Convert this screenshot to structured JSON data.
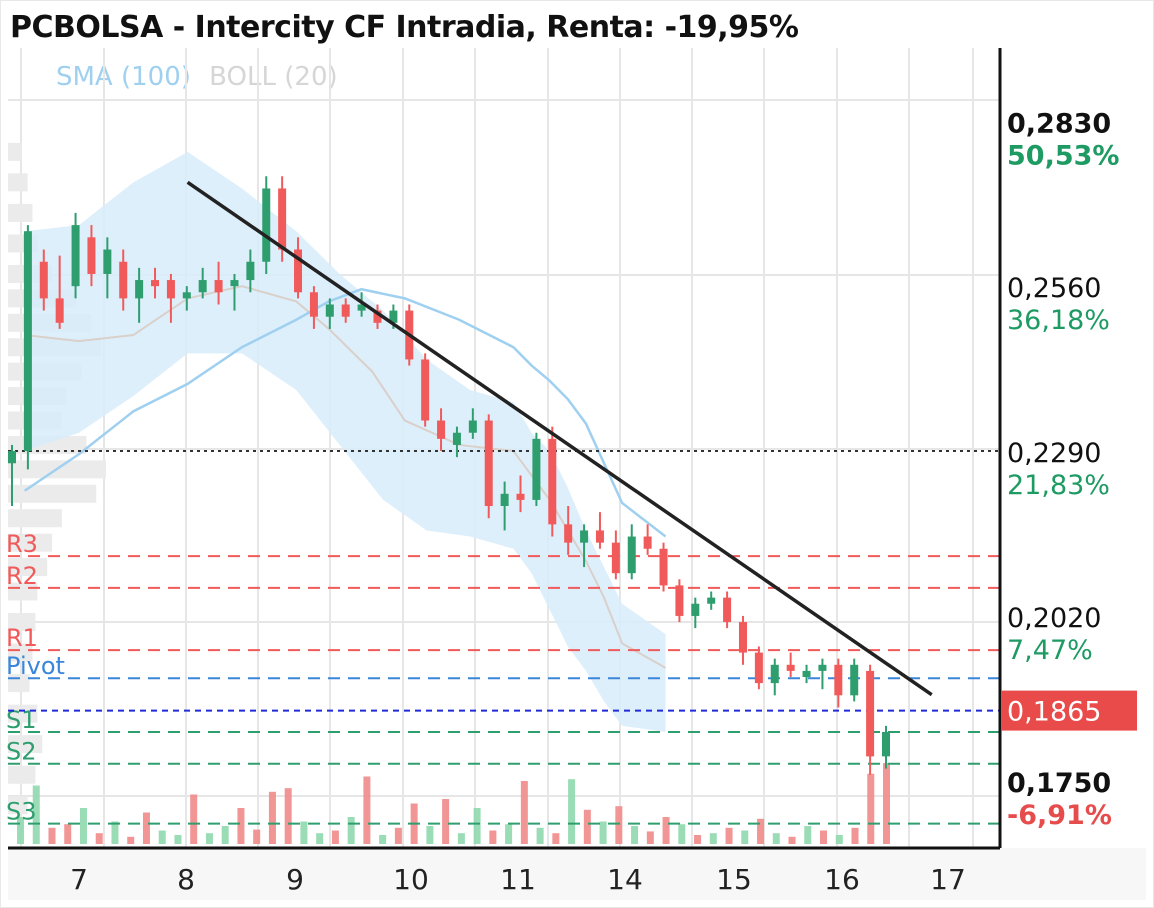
{
  "title": "PCBOLSA - Intercity CF Intradia, Renta: -19,95%",
  "legend": [
    {
      "label": "SMA (100)",
      "color": "#9fd0f0"
    },
    {
      "label": "BOLL (20)",
      "color": "#d6d6d6"
    }
  ],
  "chart_data": {
    "type": "candlestick",
    "ylim": [
      0.164,
      0.295
    ],
    "x_tick_labels": [
      "7",
      "8",
      "9",
      "10",
      "11",
      "14",
      "15",
      "16",
      "17"
    ],
    "y_ticks": [
      {
        "price": "0,2830",
        "pct": "50,53%",
        "value": 0.283,
        "bold": true,
        "pct_color": "#1e9a63"
      },
      {
        "price": "0,2560",
        "pct": "36,18%",
        "value": 0.256,
        "bold": false,
        "pct_color": "#1e9a63"
      },
      {
        "price": "0,2290",
        "pct": "21,83%",
        "value": 0.229,
        "bold": false,
        "pct_color": "#1e9a63"
      },
      {
        "price": "0,2020",
        "pct": "7,47%",
        "value": 0.202,
        "bold": false,
        "pct_color": "#1e9a63"
      },
      {
        "price": "0,1750",
        "pct": "-6,91%",
        "value": 0.175,
        "bold": true,
        "pct_color": "#e74c4c"
      }
    ],
    "current_price": {
      "label": "0,1865",
      "value": 0.1865,
      "color": "#e94b4b"
    },
    "reference_line": {
      "value": 0.229,
      "style": "dotted",
      "color": "#333333"
    },
    "levels": [
      {
        "name": "R3",
        "value": 0.2118,
        "color": "#f05a5a"
      },
      {
        "name": "R2",
        "value": 0.2066,
        "color": "#f05a5a"
      },
      {
        "name": "R1",
        "value": 0.1964,
        "color": "#f05a5a"
      },
      {
        "name": "Pivot",
        "value": 0.1918,
        "color": "#3a86d9"
      },
      {
        "name": "S1",
        "value": 0.183,
        "color": "#2e9e6e"
      },
      {
        "name": "S2",
        "value": 0.1778,
        "color": "#2e9e6e"
      },
      {
        "name": "S3",
        "value": 0.168,
        "color": "#2e9e6e"
      }
    ],
    "trendline": {
      "from": {
        "x": 8.0,
        "y": 0.273
      },
      "to": {
        "x": 16.85,
        "y": 0.1891
      },
      "color": "#222222"
    },
    "sma_100": [
      [
        6.5,
        0.2225
      ],
      [
        7.0,
        0.2285
      ],
      [
        7.5,
        0.2355
      ],
      [
        8.0,
        0.24
      ],
      [
        8.5,
        0.246
      ],
      [
        9.0,
        0.2505
      ],
      [
        9.3,
        0.2535
      ],
      [
        9.6,
        0.2555
      ],
      [
        10.0,
        0.254
      ],
      [
        10.5,
        0.2505
      ],
      [
        11.0,
        0.246
      ],
      [
        11.5,
        0.243
      ],
      [
        12.0,
        0.2405
      ],
      [
        12.5,
        0.2375
      ],
      [
        13.0,
        0.2335
      ],
      [
        13.5,
        0.227
      ],
      [
        14.0,
        0.2205
      ],
      [
        14.4,
        0.215
      ]
    ],
    "boll_mid": [
      [
        6.5,
        0.248
      ],
      [
        7.0,
        0.247
      ],
      [
        7.5,
        0.248
      ],
      [
        8.0,
        0.254
      ],
      [
        8.5,
        0.256
      ],
      [
        9.0,
        0.2535
      ],
      [
        9.3,
        0.249
      ],
      [
        9.7,
        0.242
      ],
      [
        10.0,
        0.234
      ],
      [
        10.5,
        0.23
      ],
      [
        11.0,
        0.229
      ],
      [
        11.5,
        0.225
      ],
      [
        12.0,
        0.221
      ],
      [
        12.5,
        0.216
      ],
      [
        13.0,
        0.211
      ],
      [
        13.5,
        0.205
      ],
      [
        14.0,
        0.1975
      ],
      [
        14.4,
        0.1935
      ]
    ],
    "boll_upper": [
      [
        6.5,
        0.265
      ],
      [
        7.0,
        0.266
      ],
      [
        7.5,
        0.273
      ],
      [
        8.0,
        0.278
      ],
      [
        8.5,
        0.272
      ],
      [
        9.0,
        0.265
      ],
      [
        9.4,
        0.258
      ],
      [
        9.8,
        0.252
      ],
      [
        10.2,
        0.244
      ],
      [
        10.6,
        0.239
      ],
      [
        11.0,
        0.237
      ],
      [
        11.5,
        0.232
      ],
      [
        12.0,
        0.229
      ],
      [
        12.5,
        0.223
      ],
      [
        13.0,
        0.216
      ],
      [
        13.5,
        0.21
      ],
      [
        14.0,
        0.204
      ],
      [
        14.4,
        0.199
      ]
    ],
    "boll_lower": [
      [
        6.5,
        0.229
      ],
      [
        7.0,
        0.232
      ],
      [
        7.5,
        0.238
      ],
      [
        8.0,
        0.245
      ],
      [
        8.5,
        0.245
      ],
      [
        9.0,
        0.239
      ],
      [
        9.4,
        0.23
      ],
      [
        9.8,
        0.221
      ],
      [
        10.2,
        0.216
      ],
      [
        10.6,
        0.215
      ],
      [
        11.0,
        0.213
      ],
      [
        11.5,
        0.209
      ],
      [
        12.0,
        0.203
      ],
      [
        12.5,
        0.197
      ],
      [
        13.0,
        0.193
      ],
      [
        13.5,
        0.188
      ],
      [
        14.0,
        0.184
      ],
      [
        14.4,
        0.183
      ]
    ],
    "candles": [
      {
        "o": 0.227,
        "h": 0.23,
        "l": 0.22,
        "c": 0.229
      },
      {
        "o": 0.229,
        "h": 0.266,
        "l": 0.226,
        "c": 0.265
      },
      {
        "o": 0.26,
        "h": 0.262,
        "l": 0.252,
        "c": 0.254
      },
      {
        "o": 0.254,
        "h": 0.261,
        "l": 0.249,
        "c": 0.25
      },
      {
        "o": 0.256,
        "h": 0.268,
        "l": 0.254,
        "c": 0.266
      },
      {
        "o": 0.264,
        "h": 0.266,
        "l": 0.256,
        "c": 0.258
      },
      {
        "o": 0.258,
        "h": 0.264,
        "l": 0.254,
        "c": 0.262
      },
      {
        "o": 0.26,
        "h": 0.262,
        "l": 0.252,
        "c": 0.254
      },
      {
        "o": 0.254,
        "h": 0.259,
        "l": 0.25,
        "c": 0.257
      },
      {
        "o": 0.257,
        "h": 0.259,
        "l": 0.254,
        "c": 0.256
      },
      {
        "o": 0.257,
        "h": 0.258,
        "l": 0.25,
        "c": 0.254
      },
      {
        "o": 0.254,
        "h": 0.256,
        "l": 0.252,
        "c": 0.255
      },
      {
        "o": 0.255,
        "h": 0.259,
        "l": 0.254,
        "c": 0.257
      },
      {
        "o": 0.257,
        "h": 0.26,
        "l": 0.253,
        "c": 0.255
      },
      {
        "o": 0.256,
        "h": 0.258,
        "l": 0.252,
        "c": 0.257
      },
      {
        "o": 0.257,
        "h": 0.262,
        "l": 0.255,
        "c": 0.26
      },
      {
        "o": 0.26,
        "h": 0.274,
        "l": 0.258,
        "c": 0.272
      },
      {
        "o": 0.272,
        "h": 0.274,
        "l": 0.26,
        "c": 0.262
      },
      {
        "o": 0.262,
        "h": 0.264,
        "l": 0.254,
        "c": 0.255
      },
      {
        "o": 0.255,
        "h": 0.256,
        "l": 0.249,
        "c": 0.251
      },
      {
        "o": 0.251,
        "h": 0.254,
        "l": 0.249,
        "c": 0.253
      },
      {
        "o": 0.253,
        "h": 0.254,
        "l": 0.25,
        "c": 0.251
      },
      {
        "o": 0.252,
        "h": 0.255,
        "l": 0.251,
        "c": 0.253
      },
      {
        "o": 0.252,
        "h": 0.253,
        "l": 0.249,
        "c": 0.25
      },
      {
        "o": 0.25,
        "h": 0.253,
        "l": 0.249,
        "c": 0.252
      },
      {
        "o": 0.252,
        "h": 0.253,
        "l": 0.243,
        "c": 0.244
      },
      {
        "o": 0.244,
        "h": 0.245,
        "l": 0.233,
        "c": 0.234
      },
      {
        "o": 0.234,
        "h": 0.236,
        "l": 0.229,
        "c": 0.231
      },
      {
        "o": 0.23,
        "h": 0.233,
        "l": 0.228,
        "c": 0.232
      },
      {
        "o": 0.232,
        "h": 0.236,
        "l": 0.231,
        "c": 0.234
      },
      {
        "o": 0.234,
        "h": 0.235,
        "l": 0.218,
        "c": 0.22
      },
      {
        "o": 0.22,
        "h": 0.224,
        "l": 0.216,
        "c": 0.222
      },
      {
        "o": 0.222,
        "h": 0.225,
        "l": 0.219,
        "c": 0.221
      },
      {
        "o": 0.221,
        "h": 0.232,
        "l": 0.22,
        "c": 0.231
      },
      {
        "o": 0.231,
        "h": 0.233,
        "l": 0.215,
        "c": 0.217
      },
      {
        "o": 0.217,
        "h": 0.22,
        "l": 0.212,
        "c": 0.214
      },
      {
        "o": 0.214,
        "h": 0.217,
        "l": 0.21,
        "c": 0.216
      },
      {
        "o": 0.216,
        "h": 0.219,
        "l": 0.213,
        "c": 0.214
      },
      {
        "o": 0.214,
        "h": 0.216,
        "l": 0.208,
        "c": 0.209
      },
      {
        "o": 0.209,
        "h": 0.217,
        "l": 0.208,
        "c": 0.215
      },
      {
        "o": 0.215,
        "h": 0.217,
        "l": 0.212,
        "c": 0.213
      },
      {
        "o": 0.213,
        "h": 0.214,
        "l": 0.206,
        "c": 0.207
      },
      {
        "o": 0.207,
        "h": 0.208,
        "l": 0.201,
        "c": 0.202
      },
      {
        "o": 0.202,
        "h": 0.205,
        "l": 0.2,
        "c": 0.204
      },
      {
        "o": 0.204,
        "h": 0.206,
        "l": 0.203,
        "c": 0.205
      },
      {
        "o": 0.205,
        "h": 0.206,
        "l": 0.2,
        "c": 0.201
      },
      {
        "o": 0.201,
        "h": 0.202,
        "l": 0.194,
        "c": 0.196
      },
      {
        "o": 0.196,
        "h": 0.197,
        "l": 0.19,
        "c": 0.191
      },
      {
        "o": 0.191,
        "h": 0.195,
        "l": 0.189,
        "c": 0.194
      },
      {
        "o": 0.194,
        "h": 0.196,
        "l": 0.192,
        "c": 0.193
      },
      {
        "o": 0.192,
        "h": 0.194,
        "l": 0.191,
        "c": 0.193
      },
      {
        "o": 0.193,
        "h": 0.195,
        "l": 0.19,
        "c": 0.194
      },
      {
        "o": 0.194,
        "h": 0.195,
        "l": 0.187,
        "c": 0.189
      },
      {
        "o": 0.189,
        "h": 0.195,
        "l": 0.188,
        "c": 0.194
      },
      {
        "o": 0.193,
        "h": 0.194,
        "l": 0.176,
        "c": 0.179
      },
      {
        "o": 0.179,
        "h": 0.184,
        "l": 0.177,
        "c": 0.183
      }
    ],
    "volume_max": 100,
    "volumes": [
      {
        "v": 30,
        "up": true
      },
      {
        "v": 65,
        "up": true
      },
      {
        "v": 18,
        "up": false
      },
      {
        "v": 22,
        "up": false
      },
      {
        "v": 40,
        "up": true
      },
      {
        "v": 12,
        "up": false
      },
      {
        "v": 25,
        "up": true
      },
      {
        "v": 8,
        "up": false
      },
      {
        "v": 35,
        "up": false
      },
      {
        "v": 15,
        "up": true
      },
      {
        "v": 10,
        "up": true
      },
      {
        "v": 55,
        "up": false
      },
      {
        "v": 12,
        "up": true
      },
      {
        "v": 20,
        "up": true
      },
      {
        "v": 40,
        "up": false
      },
      {
        "v": 16,
        "up": false
      },
      {
        "v": 58,
        "up": false
      },
      {
        "v": 62,
        "up": false
      },
      {
        "v": 25,
        "up": true
      },
      {
        "v": 12,
        "up": true
      },
      {
        "v": 15,
        "up": false
      },
      {
        "v": 30,
        "up": true
      },
      {
        "v": 75,
        "up": false
      },
      {
        "v": 10,
        "up": true
      },
      {
        "v": 18,
        "up": false
      },
      {
        "v": 45,
        "up": false
      },
      {
        "v": 20,
        "up": true
      },
      {
        "v": 50,
        "up": false
      },
      {
        "v": 12,
        "up": true
      },
      {
        "v": 40,
        "up": true
      },
      {
        "v": 15,
        "up": false
      },
      {
        "v": 22,
        "up": true
      },
      {
        "v": 70,
        "up": false
      },
      {
        "v": 18,
        "up": true
      },
      {
        "v": 12,
        "up": false
      },
      {
        "v": 72,
        "up": true
      },
      {
        "v": 38,
        "up": false
      },
      {
        "v": 25,
        "up": true
      },
      {
        "v": 42,
        "up": false
      },
      {
        "v": 20,
        "up": true
      },
      {
        "v": 14,
        "up": false
      },
      {
        "v": 30,
        "up": false
      },
      {
        "v": 22,
        "up": true
      },
      {
        "v": 10,
        "up": false
      },
      {
        "v": 12,
        "up": true
      },
      {
        "v": 18,
        "up": false
      },
      {
        "v": 15,
        "up": true
      },
      {
        "v": 28,
        "up": false
      },
      {
        "v": 12,
        "up": true
      },
      {
        "v": 8,
        "up": false
      },
      {
        "v": 20,
        "up": true
      },
      {
        "v": 15,
        "up": false
      },
      {
        "v": 10,
        "up": true
      },
      {
        "v": 18,
        "up": false
      },
      {
        "v": 78,
        "up": false
      },
      {
        "v": 90,
        "up": false
      }
    ],
    "volume_profile": [
      {
        "price": 0.278,
        "w": 14
      },
      {
        "price": 0.273,
        "w": 20
      },
      {
        "price": 0.268,
        "w": 25
      },
      {
        "price": 0.263,
        "w": 30
      },
      {
        "price": 0.258,
        "w": 45
      },
      {
        "price": 0.254,
        "w": 70
      },
      {
        "price": 0.25,
        "w": 85
      },
      {
        "price": 0.246,
        "w": 95
      },
      {
        "price": 0.242,
        "w": 75
      },
      {
        "price": 0.238,
        "w": 60
      },
      {
        "price": 0.234,
        "w": 55
      },
      {
        "price": 0.23,
        "w": 80
      },
      {
        "price": 0.226,
        "w": 100
      },
      {
        "price": 0.222,
        "w": 90
      },
      {
        "price": 0.218,
        "w": 55
      },
      {
        "price": 0.214,
        "w": 45
      },
      {
        "price": 0.21,
        "w": 40
      },
      {
        "price": 0.206,
        "w": 30
      },
      {
        "price": 0.201,
        "w": 28
      },
      {
        "price": 0.196,
        "w": 25
      },
      {
        "price": 0.191,
        "w": 22
      },
      {
        "price": 0.186,
        "w": 30
      },
      {
        "price": 0.181,
        "w": 35
      },
      {
        "price": 0.176,
        "w": 28
      },
      {
        "price": 0.171,
        "w": 20
      }
    ],
    "colors": {
      "up": "#2e9e6e",
      "down": "#f05a5a",
      "boll_fill": "#d8ecfb",
      "boll_mid": "#d9d0ca",
      "sma": "#9fd0f0",
      "grid": "#e6e6e6"
    }
  }
}
